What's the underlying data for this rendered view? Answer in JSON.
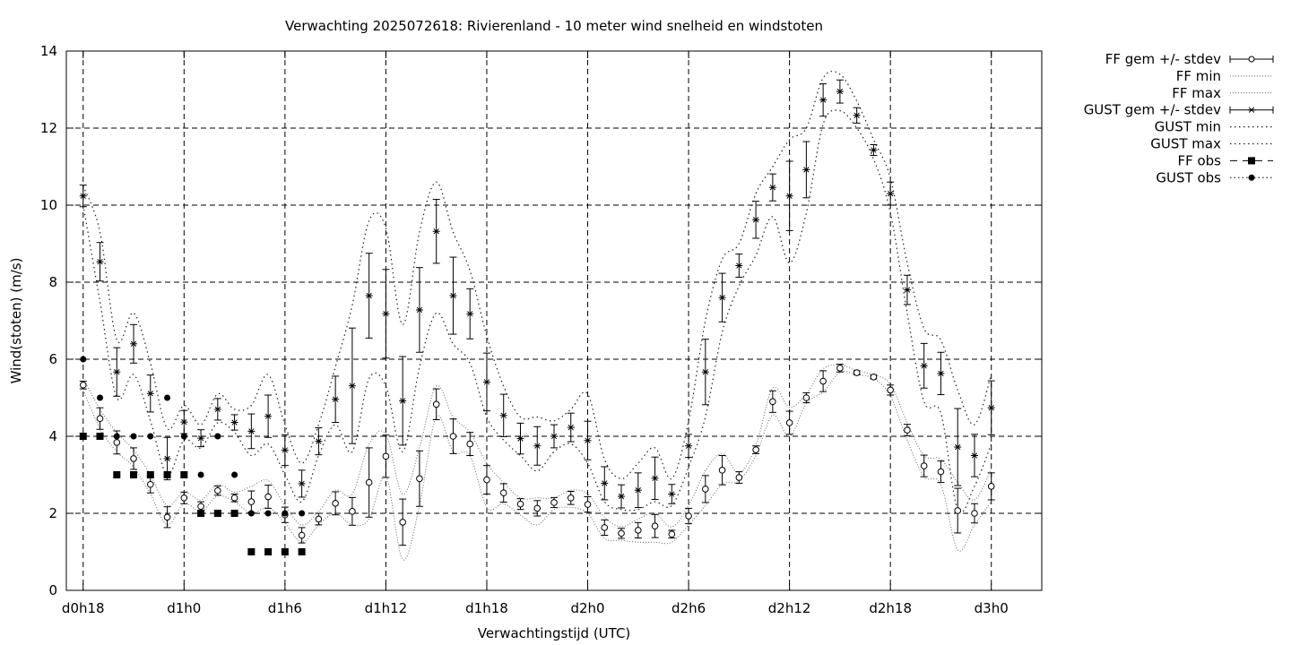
{
  "chart_data": {
    "type": "line",
    "title": "Verwachting 2025072618: Rivierenland - 10 meter wind snelheid en windstoten",
    "xlabel": "Verwachtingstijd (UTC)",
    "ylabel": "Wind(stoten) (m/s)",
    "ylim": [
      0,
      14
    ],
    "xlim": [
      -1,
      57
    ],
    "yticks": [
      0,
      2,
      4,
      6,
      8,
      10,
      12,
      14
    ],
    "xticks": [
      {
        "x": 0,
        "label": "d0h18"
      },
      {
        "x": 6,
        "label": "d1h0"
      },
      {
        "x": 12,
        "label": "d1h6"
      },
      {
        "x": 18,
        "label": "d1h12"
      },
      {
        "x": 24,
        "label": "d1h18"
      },
      {
        "x": 30,
        "label": "d2h0"
      },
      {
        "x": 36,
        "label": "d2h6"
      },
      {
        "x": 42,
        "label": "d2h12"
      },
      {
        "x": 48,
        "label": "d2h18"
      },
      {
        "x": 54,
        "label": "d3h0"
      }
    ],
    "grid": true,
    "legend_position": "outside-top-right",
    "x": [
      0,
      1,
      2,
      3,
      4,
      5,
      6,
      7,
      8,
      9,
      10,
      11,
      12,
      13,
      14,
      15,
      16,
      17,
      18,
      19,
      20,
      21,
      22,
      23,
      24,
      25,
      26,
      27,
      28,
      29,
      30,
      31,
      32,
      33,
      34,
      35,
      36,
      37,
      38,
      39,
      40,
      41,
      42,
      43,
      44,
      45,
      46,
      47,
      48,
      49,
      50,
      51,
      52,
      53,
      54
    ],
    "series": [
      {
        "name": "FF gem +/- stdev",
        "style": "errorbar",
        "marker": "open-circle",
        "values": [
          5.33,
          4.46,
          3.84,
          3.42,
          2.75,
          1.9,
          2.4,
          2.18,
          2.59,
          2.4,
          2.3,
          2.43,
          1.96,
          1.43,
          1.85,
          2.26,
          2.05,
          2.8,
          3.48,
          1.77,
          2.9,
          4.83,
          4.0,
          3.8,
          2.87,
          2.53,
          2.24,
          2.13,
          2.28,
          2.4,
          2.23,
          1.63,
          1.48,
          1.56,
          1.67,
          1.46,
          1.93,
          2.63,
          3.12,
          2.93,
          3.65,
          4.9,
          4.35,
          5.0,
          5.43,
          5.77,
          5.65,
          5.54,
          5.2,
          4.16,
          3.23,
          3.08,
          2.07,
          2.0,
          2.7
        ],
        "stdev": [
          0.1,
          0.28,
          0.3,
          0.28,
          0.22,
          0.27,
          0.15,
          0.12,
          0.12,
          0.1,
          0.28,
          0.3,
          0.2,
          0.2,
          0.15,
          0.3,
          0.36,
          0.9,
          0.55,
          0.6,
          0.72,
          0.4,
          0.45,
          0.3,
          0.37,
          0.24,
          0.14,
          0.2,
          0.13,
          0.17,
          0.2,
          0.2,
          0.13,
          0.2,
          0.3,
          0.1,
          0.2,
          0.35,
          0.38,
          0.15,
          0.1,
          0.28,
          0.3,
          0.13,
          0.27,
          0.1,
          0.05,
          0.05,
          0.13,
          0.15,
          0.28,
          0.28,
          0.58,
          0.25,
          0.35
        ]
      },
      {
        "name": "FF min",
        "style": "dotted",
        "values": [
          5.2,
          4.2,
          3.6,
          3.2,
          2.5,
          1.7,
          2.25,
          2.05,
          2.45,
          2.3,
          2.0,
          2.15,
          1.75,
          1.25,
          1.7,
          2.0,
          1.7,
          1.85,
          2.95,
          0.8,
          2.2,
          4.5,
          3.6,
          3.5,
          2.15,
          2.25,
          1.95,
          1.7,
          2.1,
          2.15,
          2.0,
          1.35,
          1.3,
          1.25,
          1.25,
          1.25,
          1.7,
          2.2,
          2.75,
          2.85,
          3.5,
          4.55,
          4.0,
          4.85,
          5.15,
          5.65,
          5.6,
          5.5,
          5.05,
          3.9,
          2.95,
          2.75,
          1.05,
          1.7,
          2.3
        ]
      },
      {
        "name": "FF max",
        "style": "dotted",
        "values": [
          5.5,
          4.7,
          4.1,
          3.65,
          3.0,
          2.2,
          2.55,
          2.35,
          2.75,
          2.55,
          2.7,
          2.85,
          2.2,
          1.7,
          2.05,
          2.6,
          2.5,
          3.8,
          4.05,
          2.5,
          3.7,
          5.3,
          4.5,
          4.1,
          3.3,
          2.8,
          2.4,
          2.4,
          2.4,
          2.6,
          2.5,
          1.9,
          1.65,
          1.85,
          2.0,
          1.65,
          2.2,
          3.1,
          3.55,
          3.05,
          3.75,
          5.25,
          4.75,
          5.1,
          5.75,
          5.85,
          5.7,
          5.6,
          5.35,
          4.35,
          3.5,
          3.4,
          2.8,
          2.35,
          3.15
        ]
      },
      {
        "name": "GUST gem +/- stdev",
        "style": "errorbar",
        "marker": "star",
        "values": [
          10.24,
          8.53,
          5.67,
          6.4,
          5.11,
          3.42,
          4.37,
          3.95,
          4.7,
          4.36,
          4.13,
          4.52,
          3.64,
          2.77,
          3.87,
          4.96,
          5.31,
          7.65,
          7.18,
          4.92,
          7.28,
          9.32,
          7.65,
          7.18,
          5.41,
          4.54,
          3.94,
          3.75,
          4.0,
          4.23,
          3.89,
          2.78,
          2.44,
          2.6,
          2.91,
          2.5,
          3.75,
          5.67,
          7.6,
          8.43,
          9.62,
          10.46,
          10.24,
          10.92,
          12.73,
          12.95,
          12.33,
          11.43,
          10.3,
          7.8,
          5.83,
          5.63,
          3.72,
          3.5,
          4.74
        ],
        "stdev": [
          0.28,
          0.5,
          0.63,
          0.5,
          0.48,
          0.55,
          0.3,
          0.22,
          0.28,
          0.2,
          0.45,
          0.55,
          0.4,
          0.35,
          0.35,
          0.6,
          1.5,
          1.1,
          1.15,
          1.15,
          1.1,
          0.83,
          1.0,
          0.65,
          0.75,
          0.55,
          0.4,
          0.5,
          0.3,
          0.37,
          0.5,
          0.43,
          0.3,
          0.45,
          0.55,
          0.25,
          0.3,
          0.85,
          0.63,
          0.3,
          0.48,
          0.35,
          0.9,
          0.73,
          0.42,
          0.3,
          0.2,
          0.14,
          0.3,
          0.38,
          0.58,
          0.55,
          1.0,
          0.55,
          0.7
        ]
      },
      {
        "name": "GUST min",
        "style": "dotted",
        "values": [
          10.0,
          7.5,
          5.0,
          5.6,
          4.4,
          3.0,
          3.9,
          3.7,
          4.35,
          4.1,
          3.5,
          3.8,
          3.0,
          2.3,
          3.5,
          4.3,
          3.6,
          5.5,
          5.3,
          3.6,
          5.8,
          7.2,
          6.4,
          5.9,
          4.5,
          3.9,
          3.5,
          3.1,
          3.6,
          3.8,
          3.3,
          2.3,
          2.1,
          2.1,
          2.3,
          2.2,
          3.2,
          4.5,
          6.7,
          7.9,
          8.7,
          9.7,
          8.5,
          9.8,
          12.1,
          12.45,
          12.0,
          11.2,
          9.8,
          7.2,
          4.9,
          4.6,
          2.1,
          2.7,
          3.8
        ]
      },
      {
        "name": "GUST max",
        "style": "dotted",
        "values": [
          10.5,
          9.3,
          6.5,
          7.2,
          5.9,
          4.2,
          4.8,
          4.3,
          5.1,
          4.7,
          4.8,
          5.6,
          4.3,
          3.3,
          4.3,
          5.8,
          7.4,
          9.6,
          9.4,
          6.9,
          9.3,
          10.6,
          9.3,
          8.3,
          6.6,
          5.3,
          4.5,
          4.5,
          4.4,
          4.7,
          5.1,
          3.4,
          2.9,
          3.3,
          3.7,
          2.9,
          4.4,
          7.0,
          8.6,
          9.0,
          10.3,
          11.0,
          11.7,
          12.0,
          13.3,
          13.4,
          12.7,
          11.7,
          10.7,
          8.5,
          6.8,
          6.5,
          5.2,
          4.3,
          5.6
        ]
      },
      {
        "name": "FF obs",
        "style": "dashed-points",
        "marker": "filled-square",
        "x": [
          0,
          1,
          2,
          3,
          4,
          5,
          6,
          7,
          8,
          9,
          10,
          11,
          12,
          13
        ],
        "values": [
          4,
          4,
          3,
          3,
          3,
          3,
          3,
          2,
          2,
          2,
          1,
          1,
          1,
          1
        ]
      },
      {
        "name": "GUST obs",
        "style": "dotted-points",
        "marker": "filled-circle",
        "x": [
          0,
          1,
          2,
          3,
          4,
          5,
          6,
          7,
          8,
          9,
          10,
          11,
          12,
          13
        ],
        "values": [
          6,
          5,
          4,
          4,
          4,
          5,
          4,
          3,
          4,
          3,
          2,
          2,
          2,
          2
        ]
      }
    ]
  }
}
